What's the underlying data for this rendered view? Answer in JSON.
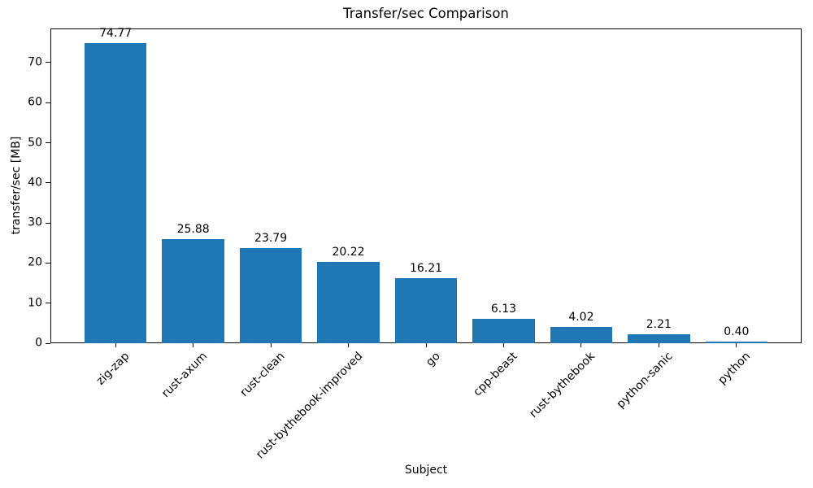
{
  "chart_data": {
    "type": "bar",
    "title": "Transfer/sec Comparison",
    "xlabel": "Subject",
    "ylabel": "transfer/sec [MB]",
    "categories": [
      "zig-zap",
      "rust-axum",
      "rust-clean",
      "rust-bythebook-improved",
      "go",
      "cpp-beast",
      "rust-bythebook",
      "python-sanic",
      "python"
    ],
    "values": [
      74.77,
      25.88,
      23.79,
      20.22,
      16.21,
      6.13,
      4.02,
      2.21,
      0.4
    ],
    "value_labels": [
      "74.77",
      "25.88",
      "23.79",
      "20.22",
      "16.21",
      "6.13",
      "4.02",
      "2.21",
      "0.40"
    ],
    "yticks": [
      0,
      10,
      20,
      30,
      40,
      50,
      60,
      70
    ],
    "ylim": [
      0,
      78.5
    ],
    "bar_color": "#1f77b4",
    "grid": false,
    "legend": null,
    "background_color": "#ffffff",
    "text_color": "#000000"
  }
}
